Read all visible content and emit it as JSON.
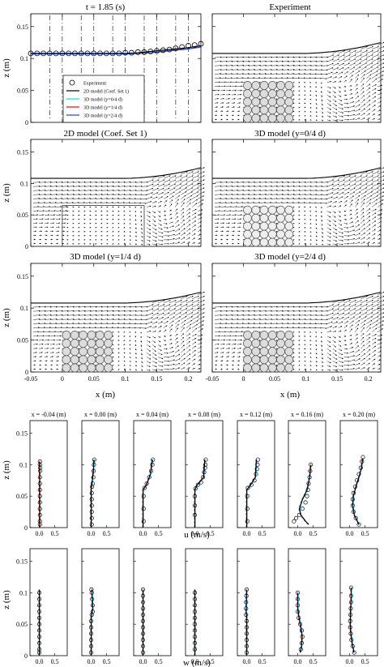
{
  "time_title": "t = 1.85 (s)",
  "legend": [
    {
      "label": "Experiment",
      "color": "#000000",
      "marker": "circle"
    },
    {
      "label": "2D model (Coef. Set 1)",
      "color": "#000000"
    },
    {
      "label": "3D model (y=0/4 d)",
      "color": "#00e5ee"
    },
    {
      "label": "3D model (y=1/4 d)",
      "color": "#ff0000"
    },
    {
      "label": "3D model (y=2/4 d)",
      "color": "#1f3fd4"
    }
  ],
  "panel_titles": [
    "Experiment",
    "2D model (Coef. Set 1)",
    "3D model (y=0/4 d)",
    "3D model (y=1/4 d)",
    "3D model (y=2/4 d)"
  ],
  "field_axes": {
    "xlabel": "x (m)",
    "ylabel": "z (m)",
    "xlim": [
      -0.05,
      0.22
    ],
    "ylim": [
      0,
      0.17
    ],
    "xticks": [
      "-0.05",
      "0",
      "0.05",
      "0.1",
      "0.15",
      "0.2"
    ],
    "yticks": [
      "0",
      "0.05",
      "0.1",
      "0.15"
    ]
  },
  "profile_titles": [
    "x = -0.04 (m)",
    "x = 0.00 (m)",
    "x = 0.04 (m)",
    "x = 0.08 (m)",
    "x = 0.12 (m)",
    "x = 0.16 (m)",
    "x = 0.20 (m)"
  ],
  "profile_axes": {
    "ylabel": "z (m)",
    "yticks": [
      "0",
      "0.05",
      "0.1",
      "0.15"
    ],
    "ylim": [
      0,
      0.17
    ],
    "xlim": [
      -0.3,
      0.9
    ],
    "xticks": [
      "0.0",
      "0.5"
    ],
    "u_label": "u (m/s)",
    "w_label": "w (m/s)"
  },
  "chart_data": [
    {
      "type": "line",
      "title": "t = 1.85 (s)",
      "ylabel": "z (m)",
      "xlim": [
        -0.05,
        0.22
      ],
      "ylim": [
        0,
        0.17
      ],
      "series": [
        {
          "name": "Experiment",
          "x": [
            -0.05,
            -0.04,
            -0.03,
            -0.02,
            -0.01,
            0,
            0.01,
            0.02,
            0.03,
            0.04,
            0.05,
            0.06,
            0.07,
            0.08,
            0.09,
            0.1,
            0.11,
            0.12,
            0.13,
            0.14,
            0.15,
            0.16,
            0.17,
            0.18,
            0.19,
            0.2,
            0.21,
            0.22
          ],
          "y": [
            0.108,
            0.108,
            0.108,
            0.108,
            0.108,
            0.108,
            0.108,
            0.108,
            0.108,
            0.108,
            0.108,
            0.108,
            0.108,
            0.108,
            0.108,
            0.109,
            0.109,
            0.11,
            0.11,
            0.111,
            0.112,
            0.113,
            0.114,
            0.116,
            0.118,
            0.12,
            0.121,
            0.123
          ]
        },
        {
          "name": "2D model (Coef. Set 1)",
          "x": [
            -0.05,
            0,
            0.05,
            0.1,
            0.12,
            0.14,
            0.16,
            0.18,
            0.2,
            0.22
          ],
          "y": [
            0.108,
            0.108,
            0.108,
            0.108,
            0.109,
            0.111,
            0.113,
            0.115,
            0.117,
            0.12
          ]
        },
        {
          "name": "3D model (y=2/4 d)",
          "x": [
            -0.05,
            0,
            0.05,
            0.1,
            0.12,
            0.14,
            0.16,
            0.18,
            0.2,
            0.22
          ],
          "y": [
            0.107,
            0.107,
            0.107,
            0.107,
            0.108,
            0.109,
            0.111,
            0.113,
            0.115,
            0.118
          ]
        }
      ]
    },
    {
      "type": "scatter",
      "name": "u profiles",
      "xlabel": "u (m/s)",
      "ylabel": "z (m)",
      "profiles": [
        {
          "x_location": -0.04,
          "experiment": {
            "u": [
              0.02,
              0.02,
              0.02,
              0.02,
              0.02,
              0.02,
              0.02,
              0.02,
              0.02,
              0.03,
              0.03,
              0.02,
              0.02
            ],
            "z": [
              0.005,
              0.01,
              0.02,
              0.03,
              0.04,
              0.05,
              0.06,
              0.07,
              0.08,
              0.09,
              0.095,
              0.1,
              0.105
            ]
          },
          "model": {
            "u": [
              0.01,
              0.01,
              0.01,
              0.01
            ],
            "z": [
              0,
              0.04,
              0.08,
              0.105
            ]
          }
        },
        {
          "x_location": 0.0,
          "experiment": {
            "u": [
              0.02,
              0.02,
              0.02,
              0.02,
              0.02,
              0.02,
              0.03,
              0.05,
              0.07,
              0.08,
              0.09,
              0.1
            ],
            "z": [
              0.005,
              0.015,
              0.025,
              0.035,
              0.045,
              0.055,
              0.065,
              0.07,
              0.08,
              0.09,
              0.1,
              0.108
            ]
          },
          "model": {
            "u": [
              0,
              0,
              0,
              0.02,
              0.07,
              0.09
            ],
            "z": [
              0,
              0.03,
              0.062,
              0.068,
              0.09,
              0.108
            ]
          }
        },
        {
          "x_location": 0.04,
          "experiment": {
            "u": [
              0.02,
              0.02,
              0.02,
              0.05,
              0.12,
              0.2,
              0.26,
              0.3,
              0.32
            ],
            "z": [
              0.01,
              0.03,
              0.05,
              0.063,
              0.07,
              0.08,
              0.09,
              0.1,
              0.108
            ]
          },
          "model": {
            "u": [
              0,
              0,
              0,
              0.1,
              0.24,
              0.3
            ],
            "z": [
              0,
              0.03,
              0.06,
              0.067,
              0.085,
              0.108
            ]
          }
        },
        {
          "x_location": 0.08,
          "experiment": {
            "u": [
              0.0,
              0.0,
              0.0,
              0.02,
              0.1,
              0.2,
              0.26,
              0.3,
              0.33,
              0.34,
              0.35
            ],
            "z": [
              0.02,
              0.035,
              0.05,
              0.062,
              0.068,
              0.072,
              0.08,
              0.088,
              0.095,
              0.1,
              0.108
            ]
          },
          "model": {
            "u": [
              0,
              0,
              0,
              0.05,
              0.28,
              0.32
            ],
            "z": [
              0,
              0.03,
              0.06,
              0.066,
              0.08,
              0.108
            ]
          }
        },
        {
          "x_location": 0.12,
          "experiment": {
            "u": [
              0.02,
              0.02,
              0.02,
              0.04,
              0.15,
              0.25,
              0.3,
              0.33,
              0.35,
              0.36
            ],
            "z": [
              0.01,
              0.03,
              0.05,
              0.063,
              0.068,
              0.075,
              0.085,
              0.093,
              0.1,
              0.108
            ]
          },
          "model": {
            "u": [
              0,
              0,
              0,
              0.1,
              0.28,
              0.31
            ],
            "z": [
              0,
              0.03,
              0.06,
              0.066,
              0.08,
              0.108
            ]
          }
        },
        {
          "x_location": 0.16,
          "experiment": {
            "u": [
              -0.12,
              -0.05,
              0.05,
              0.15,
              0.25,
              0.3,
              0.33,
              0.35,
              0.38,
              0.4,
              0.42
            ],
            "z": [
              0.01,
              0.015,
              0.02,
              0.03,
              0.04,
              0.05,
              0.06,
              0.07,
              0.08,
              0.09,
              0.1
            ]
          },
          "model": {
            "u": [
              0.35,
              0.25,
              0.1,
              0.05,
              0.15,
              0.3,
              0.38,
              0.42
            ],
            "z": [
              0.005,
              0.01,
              0.02,
              0.03,
              0.045,
              0.06,
              0.08,
              0.1
            ]
          }
        },
        {
          "x_location": 0.2,
          "experiment": {
            "u": [
              0.3,
              0.2,
              0.13,
              0.1,
              0.1,
              0.13,
              0.18,
              0.24,
              0.3,
              0.36,
              0.4,
              0.43
            ],
            "z": [
              0.005,
              0.015,
              0.025,
              0.035,
              0.045,
              0.055,
              0.065,
              0.075,
              0.085,
              0.095,
              0.105,
              0.112
            ]
          },
          "model": {
            "u": [
              0.3,
              0.15,
              0.1,
              0.12,
              0.2,
              0.3,
              0.38,
              0.42
            ],
            "z": [
              0.005,
              0.02,
              0.035,
              0.05,
              0.065,
              0.08,
              0.095,
              0.11
            ]
          }
        }
      ]
    },
    {
      "type": "scatter",
      "name": "w profiles",
      "xlabel": "w (m/s)",
      "ylabel": "z (m)",
      "profiles": [
        {
          "x_location": -0.04,
          "experiment": {
            "w": [
              0.0,
              0.0,
              0.0,
              0.0,
              0.0,
              0.0,
              0.0,
              0.0,
              0.0,
              0.0,
              0.0
            ],
            "z": [
              0.005,
              0.01,
              0.02,
              0.03,
              0.04,
              0.05,
              0.06,
              0.07,
              0.08,
              0.09,
              0.1
            ]
          },
          "model": {
            "w": [
              0,
              0,
              0,
              0,
              0
            ],
            "z": [
              0,
              0.03,
              0.06,
              0.09,
              0.105
            ]
          }
        },
        {
          "x_location": 0.0,
          "experiment": {
            "w": [
              0.0,
              0.0,
              0.0,
              0.0,
              0.0,
              0.0,
              0.02,
              0.05,
              0.05,
              0.03,
              0.02,
              0.01
            ],
            "z": [
              0.005,
              0.015,
              0.025,
              0.035,
              0.045,
              0.055,
              0.065,
              0.07,
              0.08,
              0.09,
              0.1,
              0.105
            ]
          },
          "model": {
            "w": [
              0,
              0,
              0,
              0.02,
              0.05,
              0.02
            ],
            "z": [
              0,
              0.03,
              0.06,
              0.066,
              0.075,
              0.105
            ]
          }
        },
        {
          "x_location": 0.04,
          "experiment": {
            "w": [
              0.0,
              0.0,
              0.0,
              0.0,
              0.0,
              0.0,
              0.0,
              0.0,
              0.0,
              0.0,
              0.0
            ],
            "z": [
              0.005,
              0.015,
              0.025,
              0.035,
              0.045,
              0.055,
              0.065,
              0.075,
              0.085,
              0.095,
              0.105
            ]
          },
          "model": {
            "w": [
              0,
              0,
              0,
              0,
              0
            ],
            "z": [
              0,
              0.03,
              0.06,
              0.09,
              0.105
            ]
          }
        },
        {
          "x_location": 0.08,
          "experiment": {
            "w": [
              0.0,
              0.0,
              0.0,
              0.0,
              0.0,
              0.0,
              0.0,
              0.0,
              0.0,
              0.0
            ],
            "z": [
              0.01,
              0.02,
              0.03,
              0.04,
              0.05,
              0.06,
              0.07,
              0.08,
              0.09,
              0.1
            ]
          },
          "model": {
            "w": [
              0,
              0,
              0,
              0,
              0
            ],
            "z": [
              0,
              0.03,
              0.06,
              0.09,
              0.105
            ]
          }
        },
        {
          "x_location": 0.12,
          "experiment": {
            "w": [
              0.0,
              0.0,
              0.0,
              0.0,
              0.0,
              0.0,
              -0.02,
              -0.02,
              -0.02,
              -0.01,
              0.0
            ],
            "z": [
              0.005,
              0.015,
              0.025,
              0.035,
              0.045,
              0.055,
              0.065,
              0.075,
              0.085,
              0.095,
              0.105
            ]
          },
          "model": {
            "w": [
              0,
              0,
              0,
              -0.02,
              -0.01,
              0
            ],
            "z": [
              0,
              0.03,
              0.06,
              0.07,
              0.09,
              0.105
            ]
          }
        },
        {
          "x_location": 0.16,
          "experiment": {
            "w": [
              0.1,
              0.13,
              0.15,
              0.13,
              0.08,
              0.03,
              0.0,
              0.0,
              0.0,
              0.0
            ],
            "z": [
              0.01,
              0.02,
              0.03,
              0.04,
              0.05,
              0.06,
              0.07,
              0.08,
              0.09,
              0.1
            ]
          },
          "model": {
            "w": [
              0.08,
              0.12,
              0.14,
              0.1,
              0.04,
              0,
              0,
              0
            ],
            "z": [
              0.005,
              0.015,
              0.03,
              0.045,
              0.06,
              0.075,
              0.09,
              0.1
            ]
          }
        },
        {
          "x_location": 0.2,
          "experiment": {
            "w": [
              0.15,
              0.1,
              0.06,
              0.04,
              0.02,
              0.02,
              0.03,
              0.04,
              0.05,
              0.05,
              0.05
            ],
            "z": [
              0.005,
              0.015,
              0.025,
              0.035,
              0.045,
              0.055,
              0.065,
              0.075,
              0.085,
              0.095,
              0.108
            ]
          },
          "model": {
            "w": [
              0.14,
              0.08,
              0.04,
              0.02,
              0.03,
              0.05,
              0.05
            ],
            "z": [
              0.005,
              0.02,
              0.035,
              0.05,
              0.07,
              0.09,
              0.108
            ]
          }
        }
      ]
    }
  ]
}
